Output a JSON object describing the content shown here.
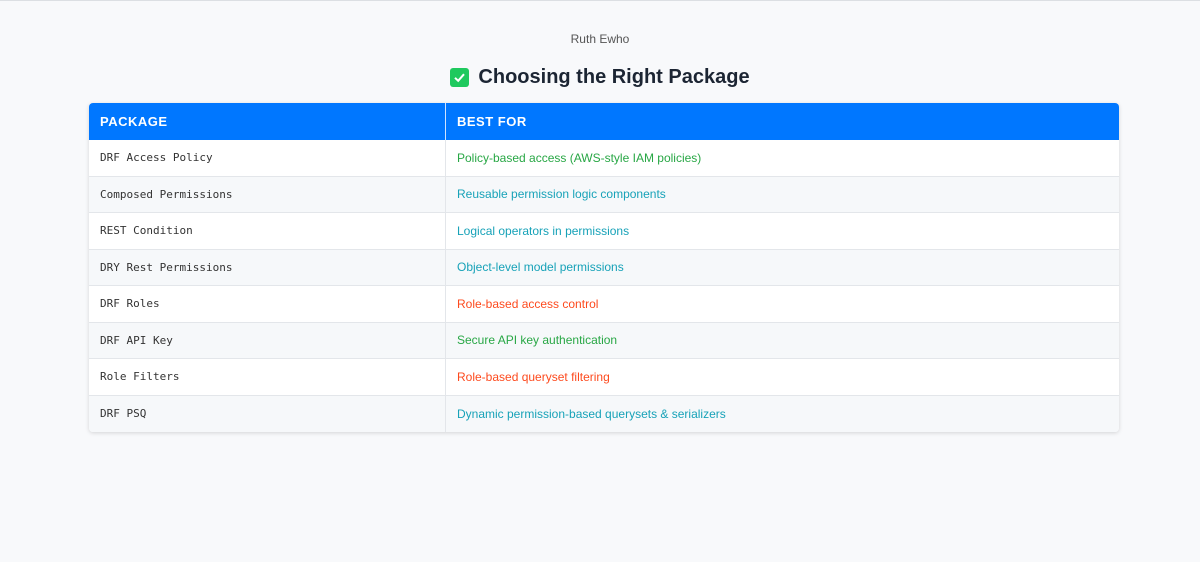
{
  "author": "Ruth Ewho",
  "title": "Choosing the Right Package",
  "title_icon": "check-box-icon",
  "colors": {
    "header": "#0077ff",
    "green": "#28a745",
    "teal": "#17a2b8",
    "red": "#fd4a1e"
  },
  "table": {
    "headers": [
      "PACKAGE",
      "BEST FOR"
    ],
    "rows": [
      {
        "package": "DRF Access Policy",
        "best_for": "Policy-based access (AWS-style IAM policies)",
        "color": "green"
      },
      {
        "package": "Composed Permissions",
        "best_for": "Reusable permission logic components",
        "color": "teal"
      },
      {
        "package": "REST Condition",
        "best_for": "Logical operators in permissions",
        "color": "teal"
      },
      {
        "package": "DRY Rest Permissions",
        "best_for": "Object-level model permissions",
        "color": "teal"
      },
      {
        "package": "DRF Roles",
        "best_for": "Role-based access control",
        "color": "red"
      },
      {
        "package": "DRF API Key",
        "best_for": "Secure API key authentication",
        "color": "green"
      },
      {
        "package": "Role Filters",
        "best_for": "Role-based queryset filtering",
        "color": "red"
      },
      {
        "package": "DRF PSQ",
        "best_for": "Dynamic permission-based querysets & serializers",
        "color": "teal"
      }
    ]
  }
}
